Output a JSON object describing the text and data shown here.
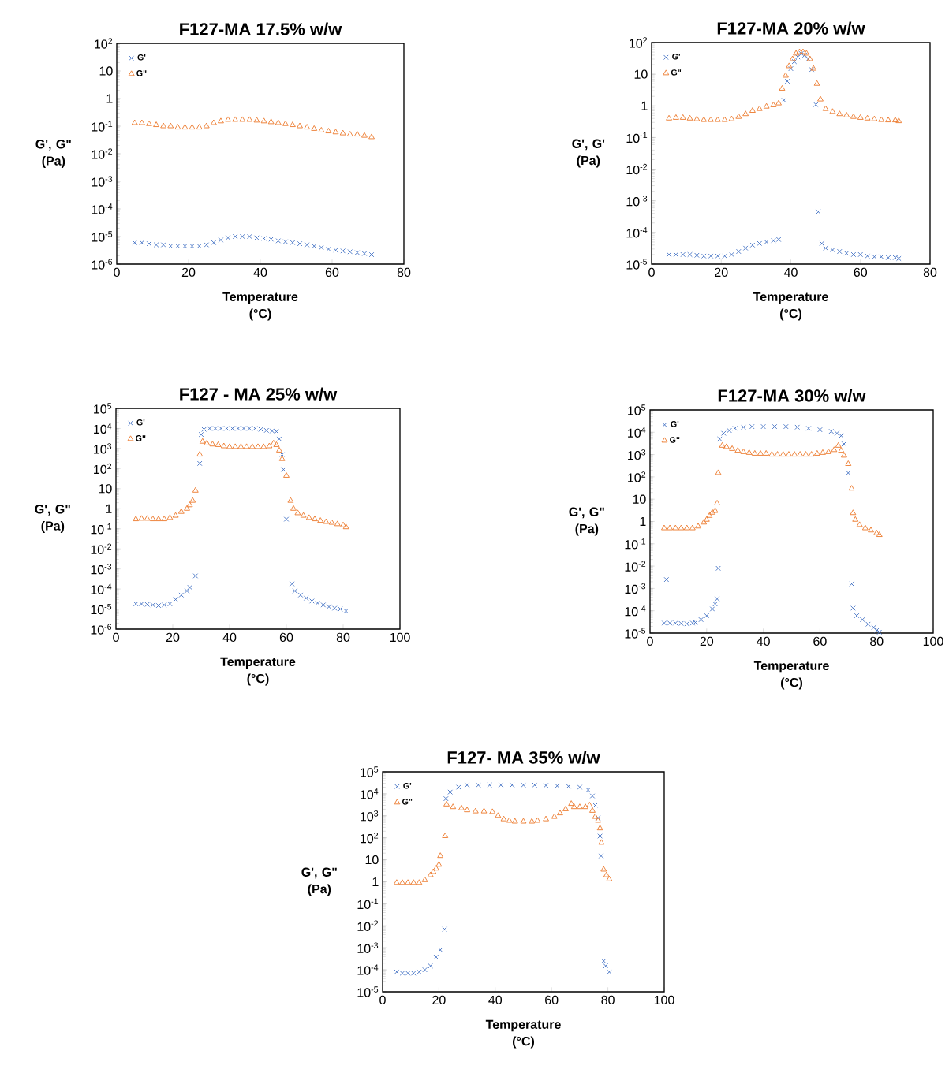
{
  "chart_data": [
    {
      "type": "scatter",
      "title": "F127-MA 17.5% w/w",
      "xlabel": "Temperature (°C)",
      "ylabel": "G', G\" (Pa)",
      "log": "y",
      "legend": "top left",
      "xlim": [
        0,
        80
      ],
      "xticks": [
        0,
        20,
        40,
        60,
        80
      ],
      "ylim": [
        1e-06,
        100
      ],
      "yticks": [
        {
          "value": 1e-06,
          "label": "10$^{-6}$"
        },
        {
          "value": 1e-05,
          "label": "10$^{-5}$"
        },
        {
          "value": 0.0001,
          "label": "10$^{-4}$"
        },
        {
          "value": 0.001,
          "label": "10$^{-3}$"
        },
        {
          "value": 0.01,
          "label": "10$^{-2}$"
        },
        {
          "value": 0.1,
          "label": "10$^{-1}$"
        },
        1,
        10,
        {
          "value": 100,
          "label": "10$^{2}$"
        }
      ],
      "series": [
        {
          "name": "G'",
          "color": "#4472c4",
          "marker": "cross",
          "x": [
            5,
            7,
            9,
            11,
            13,
            15,
            17,
            19,
            21,
            23,
            25,
            27,
            29,
            31,
            33,
            35,
            37,
            39,
            41,
            43,
            45,
            47,
            49,
            51,
            53,
            55,
            57,
            59,
            61,
            63,
            65,
            67,
            69,
            71
          ],
          "values": [
            6e-06,
            6e-06,
            5.5e-06,
            5e-06,
            5e-06,
            4.5e-06,
            4.5e-06,
            4.5e-06,
            4.5e-06,
            4.5e-06,
            5e-06,
            6e-06,
            7.5e-06,
            9e-06,
            1e-05,
            1e-05,
            1e-05,
            9e-06,
            8.5e-06,
            8e-06,
            7e-06,
            6.5e-06,
            6e-06,
            5.5e-06,
            5e-06,
            4.5e-06,
            4e-06,
            3.5e-06,
            3.2e-06,
            3e-06,
            2.8e-06,
            2.6e-06,
            2.4e-06,
            2.2e-06
          ]
        },
        {
          "name": "G\"",
          "color": "#ed7d31",
          "marker": "triangle",
          "x": [
            5,
            7,
            9,
            11,
            13,
            15,
            17,
            19,
            21,
            23,
            25,
            27,
            29,
            31,
            33,
            35,
            37,
            39,
            41,
            43,
            45,
            47,
            49,
            51,
            53,
            55,
            57,
            59,
            61,
            63,
            65,
            67,
            69,
            71
          ],
          "values": [
            0.13,
            0.13,
            0.12,
            0.11,
            0.1,
            0.1,
            0.09,
            0.09,
            0.09,
            0.09,
            0.1,
            0.13,
            0.15,
            0.17,
            0.17,
            0.17,
            0.17,
            0.16,
            0.15,
            0.14,
            0.13,
            0.12,
            0.11,
            0.1,
            0.09,
            0.08,
            0.07,
            0.065,
            0.06,
            0.055,
            0.05,
            0.05,
            0.045,
            0.04
          ]
        }
      ]
    },
    {
      "type": "scatter",
      "title": "F127-MA 20% w/w",
      "xlabel": "Temperature (°C)",
      "ylabel": "G', G' (Pa)",
      "log": "y",
      "legend": "top left",
      "xlim": [
        0,
        80
      ],
      "xticks": [
        0,
        20,
        40,
        60,
        80
      ],
      "ylim": [
        1e-05,
        100
      ],
      "yticks": [
        {
          "value": 1e-05,
          "label": "10$^{-5}$"
        },
        {
          "value": 0.0001,
          "label": "10$^{-4}$"
        },
        {
          "value": 0.001,
          "label": "10$^{-3}$"
        },
        {
          "value": 0.01,
          "label": "10$^{-2}$"
        },
        {
          "value": 0.1,
          "label": "10$^{-1}$"
        },
        1,
        10,
        {
          "value": 100,
          "label": "10$^{2}$"
        }
      ],
      "series": [
        {
          "name": "G'",
          "color": "#4472c4",
          "marker": "cross",
          "x": [
            5,
            7,
            9,
            11,
            13,
            15,
            17,
            19,
            21,
            23,
            25,
            27,
            29,
            31,
            33,
            35,
            36.5,
            38,
            39,
            40,
            41,
            42,
            43,
            44,
            45,
            46,
            47.2,
            47.9,
            48.9,
            50,
            52,
            54,
            56,
            58,
            60,
            62,
            64,
            66,
            68,
            70,
            71
          ],
          "values": [
            2e-05,
            2e-05,
            2e-05,
            2e-05,
            1.9e-05,
            1.8e-05,
            1.8e-05,
            1.8e-05,
            1.8e-05,
            2e-05,
            2.5e-05,
            3.2e-05,
            4e-05,
            4.5e-05,
            5e-05,
            5.5e-05,
            6e-05,
            1.5,
            6,
            15,
            25,
            35,
            45,
            40,
            30,
            14,
            1.1,
            0.00045,
            4.5e-05,
            3.2e-05,
            2.8e-05,
            2.5e-05,
            2.2e-05,
            2e-05,
            2e-05,
            1.8e-05,
            1.7e-05,
            1.7e-05,
            1.6e-05,
            1.6e-05,
            1.5e-05
          ]
        },
        {
          "name": "G\"",
          "color": "#ed7d31",
          "marker": "triangle",
          "x": [
            5,
            7,
            9,
            11,
            13,
            15,
            17,
            19,
            21,
            23,
            25,
            27,
            29,
            31,
            33,
            35,
            36.5,
            37.5,
            38.5,
            39.5,
            40.5,
            41.5,
            42.5,
            43.5,
            44.5,
            45.5,
            46.5,
            47.5,
            48.5,
            50,
            52,
            54,
            56,
            58,
            60,
            62,
            64,
            66,
            68,
            70,
            71
          ],
          "values": [
            0.4,
            0.42,
            0.42,
            0.4,
            0.38,
            0.36,
            0.36,
            0.36,
            0.36,
            0.38,
            0.45,
            0.55,
            0.7,
            0.8,
            0.95,
            1.05,
            1.2,
            3.5,
            9,
            18,
            30,
            45,
            50,
            50,
            45,
            30,
            15,
            5,
            1.6,
            0.8,
            0.65,
            0.55,
            0.5,
            0.45,
            0.42,
            0.4,
            0.38,
            0.36,
            0.35,
            0.35,
            0.33
          ]
        }
      ]
    },
    {
      "type": "scatter",
      "title": "F127 - MA 25% w/w",
      "xlabel": "Temperature (°C)",
      "ylabel": "G', G\" (Pa)",
      "log": "y",
      "legend": "top left",
      "xlim": [
        0,
        100
      ],
      "xticks": [
        0,
        20,
        40,
        60,
        80,
        100
      ],
      "ylim": [
        1e-06,
        100000
      ],
      "yticks": [
        {
          "value": 1e-06,
          "label": "10$^{-6}$"
        },
        {
          "value": 1e-05,
          "label": "10$^{-5}$"
        },
        {
          "value": 0.0001,
          "label": "10$^{-4}$"
        },
        {
          "value": 0.001,
          "label": "10$^{-3}$"
        },
        {
          "value": 0.01,
          "label": "10$^{-2}$"
        },
        {
          "value": 0.1,
          "label": "10$^{-1}$"
        },
        1,
        10,
        {
          "value": 100,
          "label": "10$^{2}$"
        },
        {
          "value": 1000,
          "label": "10$^{3}$"
        },
        {
          "value": 10000,
          "label": "10$^{4}$"
        },
        {
          "value": 100000,
          "label": "10$^{5}$"
        }
      ],
      "series": [
        {
          "name": "G'",
          "color": "#4472c4",
          "marker": "cross",
          "x": [
            7,
            9,
            11,
            13,
            15,
            17,
            19,
            21,
            23,
            25,
            26,
            28,
            29.5,
            30,
            31,
            33,
            35,
            37,
            39,
            41,
            43,
            45,
            47,
            49,
            51,
            53,
            55,
            56.5,
            57.5,
            58.5,
            59,
            60,
            62,
            63,
            65,
            67,
            69,
            71,
            73,
            75,
            77,
            79,
            81
          ],
          "values": [
            1.8e-05,
            1.8e-05,
            1.7e-05,
            1.6e-05,
            1.5e-05,
            1.6e-05,
            1.8e-05,
            3e-05,
            5e-05,
            8e-05,
            0.00012,
            0.00045,
            180,
            5000,
            9000,
            10000,
            10000,
            10000,
            10000,
            10000,
            10000,
            10000,
            10000,
            10000,
            9000,
            8000,
            7500,
            7000,
            3000,
            500,
            90,
            0.3,
            0.00018,
            8e-05,
            5e-05,
            3.5e-05,
            2.5e-05,
            2e-05,
            1.6e-05,
            1.3e-05,
            1.1e-05,
            1e-05,
            8e-06
          ]
        },
        {
          "name": "G\"",
          "color": "#ed7d31",
          "marker": "triangle",
          "x": [
            7,
            9,
            11,
            13,
            15,
            17,
            19,
            21,
            23,
            25,
            26,
            27,
            28,
            29.5,
            30.5,
            32,
            34,
            36,
            38,
            40,
            42,
            44,
            46,
            48,
            50,
            52,
            54,
            55.5,
            56.5,
            57.5,
            58.5,
            60,
            61.5,
            62.5,
            64,
            66,
            68,
            70,
            72,
            74,
            76,
            78,
            80,
            81
          ],
          "values": [
            0.3,
            0.32,
            0.32,
            0.3,
            0.3,
            0.3,
            0.35,
            0.45,
            0.7,
            1.0,
            1.5,
            2.5,
            8,
            500,
            2200,
            1800,
            1600,
            1500,
            1300,
            1200,
            1200,
            1200,
            1200,
            1200,
            1200,
            1200,
            1300,
            1800,
            1500,
            800,
            300,
            44,
            2.5,
            1.0,
            0.6,
            0.45,
            0.35,
            0.3,
            0.25,
            0.22,
            0.2,
            0.17,
            0.15,
            0.12
          ]
        }
      ]
    },
    {
      "type": "scatter",
      "title": "F127-MA 30% w/w",
      "xlabel": "Temperature (°C)",
      "ylabel": "G', G\" (Pa)",
      "log": "y",
      "legend": "top left",
      "xlim": [
        0,
        100
      ],
      "xticks": [
        0,
        20,
        40,
        60,
        80,
        100
      ],
      "ylim": [
        1e-05,
        100000
      ],
      "yticks": [
        {
          "value": 1e-05,
          "label": "10$^{-5}$"
        },
        {
          "value": 0.0001,
          "label": "10$^{-4}$"
        },
        {
          "value": 0.001,
          "label": "10$^{-3}$"
        },
        {
          "value": 0.01,
          "label": "10$^{-2}$"
        },
        {
          "value": 0.1,
          "label": "10$^{-1}$"
        },
        1,
        10,
        {
          "value": 100,
          "label": "10$^{2}$"
        },
        {
          "value": 1000,
          "label": "10$^{3}$"
        },
        {
          "value": 10000,
          "label": "10$^{4}$"
        },
        {
          "value": 100000,
          "label": "10$^{5}$"
        }
      ],
      "series": [
        {
          "name": "G'",
          "color": "#4472c4",
          "marker": "cross",
          "x": [
            5,
            5.8,
            7,
            9,
            11,
            13,
            15,
            16,
            18,
            20,
            22,
            23,
            23.7,
            24.1,
            24.6,
            26,
            28,
            30,
            33,
            36,
            40,
            44,
            48,
            52,
            56,
            60,
            64,
            66,
            67.5,
            68.5,
            70,
            71.2,
            71.7,
            73,
            75,
            77,
            79,
            80,
            81
          ],
          "values": [
            2.8e-05,
            0.0025,
            2.8e-05,
            2.8e-05,
            2.7e-05,
            2.6e-05,
            2.8e-05,
            3e-05,
            4e-05,
            6e-05,
            0.00012,
            0.0002,
            0.00034,
            0.008,
            5000,
            9000,
            12000,
            15000,
            17000,
            18000,
            18000,
            18000,
            18000,
            17000,
            15000,
            13000,
            11000,
            9000,
            7000,
            3000,
            150,
            0.0016,
            0.00013,
            6e-05,
            4e-05,
            2.5e-05,
            1.8e-05,
            1.3e-05,
            1.1e-05
          ]
        },
        {
          "name": "G\"",
          "color": "#ed7d31",
          "marker": "triangle",
          "x": [
            5,
            7,
            9,
            11,
            13,
            15,
            17,
            19,
            20,
            21,
            22,
            23,
            23.7,
            24.1,
            25.5,
            27,
            29,
            31,
            33,
            35,
            37,
            39,
            41,
            43,
            45,
            47,
            49,
            51,
            53,
            55,
            57,
            59,
            61,
            63,
            65,
            66.5,
            67.5,
            68.5,
            70,
            71.2,
            71.7,
            72.5,
            74,
            76,
            78,
            80,
            81
          ],
          "values": [
            0.5,
            0.5,
            0.5,
            0.5,
            0.5,
            0.5,
            0.6,
            0.9,
            1.2,
            1.8,
            2.5,
            3,
            6.5,
            150,
            2500,
            2200,
            1800,
            1500,
            1300,
            1200,
            1100,
            1100,
            1100,
            1000,
            1000,
            1000,
            1000,
            1000,
            1000,
            1000,
            1000,
            1100,
            1200,
            1300,
            1600,
            2500,
            1500,
            900,
            380,
            30,
            2.4,
            1.2,
            0.7,
            0.5,
            0.4,
            0.3,
            0.25
          ]
        }
      ]
    },
    {
      "type": "scatter",
      "title": "F127- MA 35% w/w",
      "xlabel": "Temperature (°C)",
      "ylabel": "G', G\" (Pa)",
      "log": "y",
      "legend": "top left",
      "xlim": [
        0,
        100
      ],
      "xticks": [
        0,
        20,
        40,
        60,
        80,
        100
      ],
      "ylim": [
        1e-05,
        100000
      ],
      "yticks": [
        {
          "value": 1e-05,
          "label": "10$^{-5}$"
        },
        {
          "value": 0.0001,
          "label": "10$^{-4}$"
        },
        {
          "value": 0.001,
          "label": "10$^{-3}$"
        },
        {
          "value": 0.01,
          "label": "10$^{-2}$"
        },
        {
          "value": 0.1,
          "label": "10$^{-1}$"
        },
        1,
        10,
        {
          "value": 100,
          "label": "10$^{2}$"
        },
        {
          "value": 1000,
          "label": "10$^{3}$"
        },
        {
          "value": 10000,
          "label": "10$^{4}$"
        },
        {
          "value": 100000,
          "label": "10$^{5}$"
        }
      ],
      "series": [
        {
          "name": "G'",
          "color": "#4472c4",
          "marker": "cross",
          "x": [
            5,
            7,
            9,
            11,
            13,
            15,
            17,
            19,
            20.5,
            22,
            22.5,
            24,
            27,
            30,
            34,
            38,
            42,
            46,
            50,
            54,
            58,
            62,
            66,
            70,
            73,
            74.5,
            75.5,
            76.5,
            77.2,
            77.6,
            78.5,
            79.2,
            80.5
          ],
          "values": [
            8e-05,
            7e-05,
            7e-05,
            7e-05,
            8e-05,
            0.0001,
            0.00015,
            0.00038,
            0.0008,
            0.007,
            6000,
            12000,
            20000,
            25000,
            25000,
            25000,
            25000,
            25000,
            25000,
            25000,
            24000,
            23000,
            22000,
            20000,
            15000,
            8000,
            3000,
            800,
            120,
            15,
            0.00025,
            0.00015,
            8e-05
          ]
        },
        {
          "name": "G\"",
          "color": "#ed7d31",
          "marker": "triangle",
          "x": [
            5,
            7,
            9,
            11,
            13,
            15,
            17,
            18,
            19,
            20,
            20.5,
            22.2,
            22.7,
            25,
            28,
            30,
            33,
            36,
            39,
            41,
            43,
            45,
            47,
            50,
            53,
            55,
            58,
            61,
            63,
            65,
            67,
            68,
            70,
            72,
            73.5,
            74.5,
            75.5,
            76.5,
            77.2,
            77.7,
            78.5,
            79.5,
            80.5
          ],
          "values": [
            0.9,
            0.9,
            0.9,
            0.9,
            0.9,
            1.2,
            2,
            2.8,
            4,
            6,
            15,
            120,
            3300,
            2500,
            2200,
            1800,
            1600,
            1600,
            1500,
            1000,
            700,
            600,
            550,
            550,
            550,
            600,
            700,
            900,
            1300,
            2000,
            3500,
            2500,
            2500,
            2500,
            3000,
            1700,
            900,
            600,
            270,
            60,
            3.6,
            2,
            1.3
          ]
        }
      ]
    }
  ]
}
